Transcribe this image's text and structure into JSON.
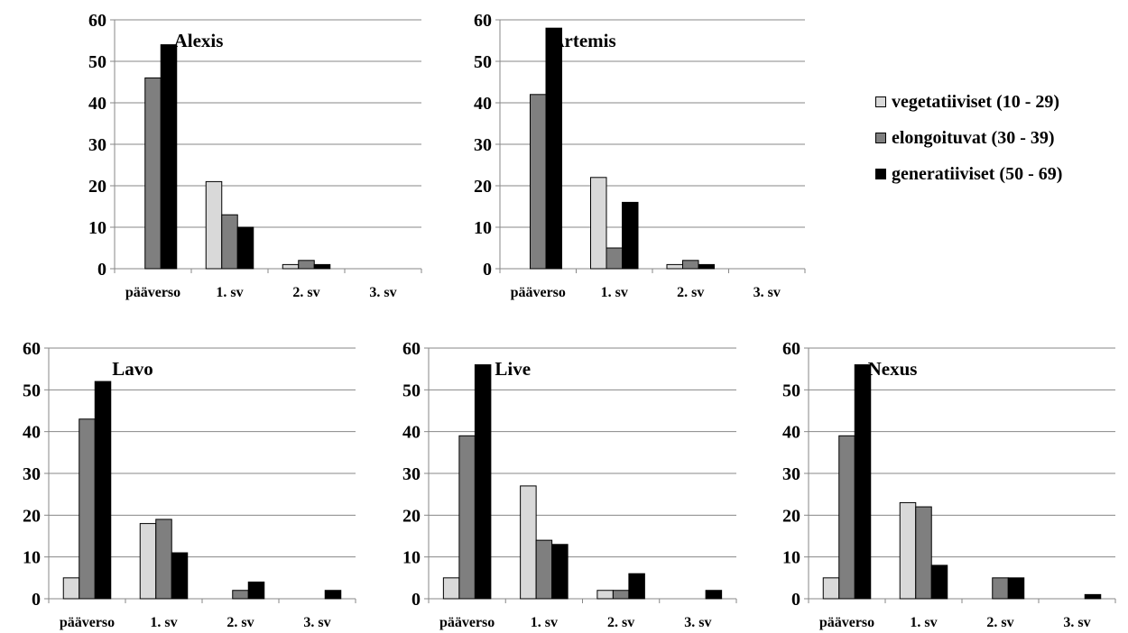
{
  "chart_data": [
    {
      "type": "bar",
      "title": "Alexis",
      "categories": [
        "pääverso",
        "1. sv",
        "2. sv",
        "3. sv"
      ],
      "ylim": [
        0,
        60
      ],
      "yticks": [
        0,
        10,
        20,
        30,
        40,
        50,
        60
      ],
      "grid": true,
      "series": [
        {
          "name": "vegetatiiviset (10 - 29)",
          "values": [
            0,
            21,
            1,
            0
          ]
        },
        {
          "name": "elongoituvat (30 - 39)",
          "values": [
            46,
            13,
            2,
            0
          ]
        },
        {
          "name": "generatiiviset (50 - 69)",
          "values": [
            54,
            10,
            1,
            0
          ]
        }
      ]
    },
    {
      "type": "bar",
      "title": "Artemis",
      "categories": [
        "pääverso",
        "1. sv",
        "2. sv",
        "3. sv"
      ],
      "ylim": [
        0,
        60
      ],
      "yticks": [
        0,
        10,
        20,
        30,
        40,
        50,
        60
      ],
      "grid": true,
      "series": [
        {
          "name": "vegetatiiviset (10 - 29)",
          "values": [
            0,
            22,
            1,
            0
          ]
        },
        {
          "name": "elongoituvat (30 - 39)",
          "values": [
            42,
            5,
            2,
            0
          ]
        },
        {
          "name": "generatiiviset (50 - 69)",
          "values": [
            58,
            16,
            1,
            0
          ]
        }
      ]
    },
    {
      "type": "bar",
      "title": "Lavo",
      "categories": [
        "pääverso",
        "1. sv",
        "2. sv",
        "3. sv"
      ],
      "ylim": [
        0,
        60
      ],
      "yticks": [
        0,
        10,
        20,
        30,
        40,
        50,
        60
      ],
      "grid": true,
      "series": [
        {
          "name": "vegetatiiviset (10 - 29)",
          "values": [
            5,
            18,
            0,
            0
          ]
        },
        {
          "name": "elongoituvat (30 - 39)",
          "values": [
            43,
            19,
            2,
            0
          ]
        },
        {
          "name": "generatiiviset (50 - 69)",
          "values": [
            52,
            11,
            4,
            2
          ]
        }
      ]
    },
    {
      "type": "bar",
      "title": "Live",
      "categories": [
        "pääverso",
        "1. sv",
        "2. sv",
        "3. sv"
      ],
      "ylim": [
        0,
        60
      ],
      "yticks": [
        0,
        10,
        20,
        30,
        40,
        50,
        60
      ],
      "grid": true,
      "series": [
        {
          "name": "vegetatiiviset (10 - 29)",
          "values": [
            5,
            27,
            2,
            0
          ]
        },
        {
          "name": "elongoituvat (30 - 39)",
          "values": [
            39,
            14,
            2,
            0
          ]
        },
        {
          "name": "generatiiviset (50 - 69)",
          "values": [
            56,
            13,
            6,
            2
          ]
        }
      ]
    },
    {
      "type": "bar",
      "title": "Nexus",
      "categories": [
        "pääverso",
        "1. sv",
        "2. sv",
        "3. sv"
      ],
      "ylim": [
        0,
        60
      ],
      "yticks": [
        0,
        10,
        20,
        30,
        40,
        50,
        60
      ],
      "grid": true,
      "series": [
        {
          "name": "vegetatiiviset (10 - 29)",
          "values": [
            5,
            23,
            0,
            0
          ]
        },
        {
          "name": "elongoituvat (30 - 39)",
          "values": [
            39,
            22,
            5,
            0
          ]
        },
        {
          "name": "generatiiviset (50 - 69)",
          "values": [
            56,
            8,
            5,
            1
          ]
        }
      ]
    }
  ],
  "legend": {
    "placement": "right",
    "items": [
      {
        "label": "vegetatiiviset (10 - 29)",
        "color": "#d9d9d9"
      },
      {
        "label": "elongoituvat (30 - 39)",
        "color": "#7f7f7f"
      },
      {
        "label": "generatiiviset (50 - 69)",
        "color": "#000000"
      }
    ]
  }
}
